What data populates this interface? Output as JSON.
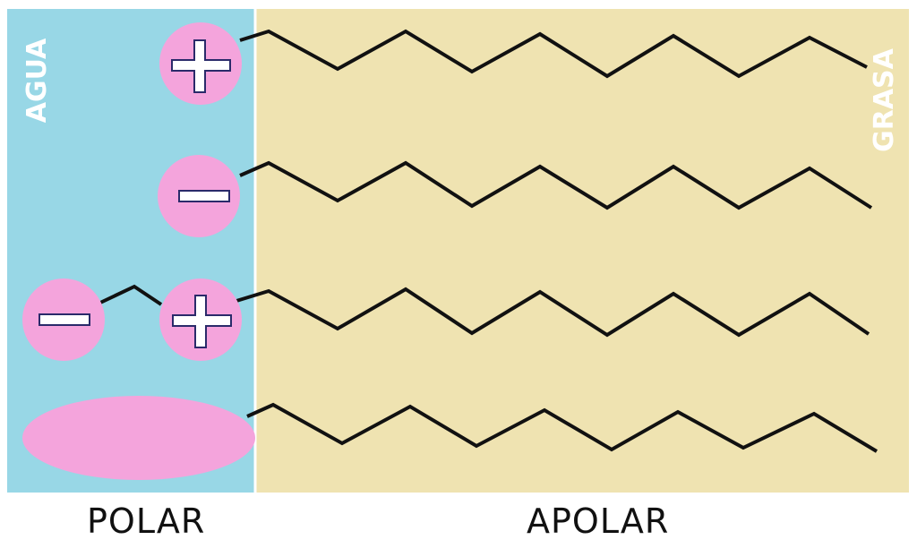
{
  "diagram": {
    "regions": {
      "water_label": "AGUA",
      "fat_label": "GRASA"
    },
    "axis_labels": {
      "polar": "POLAR",
      "apolar": "APOLAR"
    },
    "molecules": [
      {
        "head": "cationic",
        "head_charges": [
          "+"
        ]
      },
      {
        "head": "anionic",
        "head_charges": [
          "−"
        ]
      },
      {
        "head": "zwitterionic",
        "head_charges": [
          "−",
          "+"
        ]
      },
      {
        "head": "nonionic",
        "head_charges": []
      }
    ],
    "colors": {
      "water": "#98d7e6",
      "fat": "#efe3b1",
      "head": "#f4a4dc",
      "chain": "#111111",
      "sign_outline": "#2a2a6a",
      "label": "#ffffff"
    }
  }
}
